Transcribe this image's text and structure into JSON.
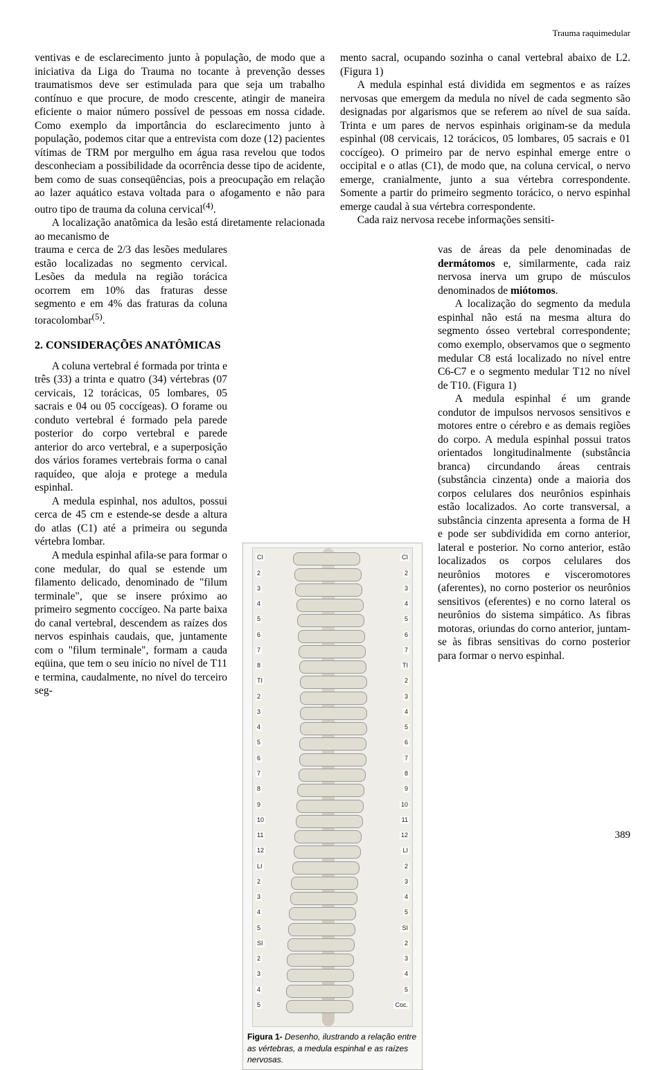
{
  "running_head": "Trauma raquimedular",
  "page_number": "389",
  "top_block": {
    "continuation": "ventivas e de esclarecimento junto à população, de modo que a iniciativa da Liga do Trauma no tocante à prevenção desses traumatismos deve ser estimulada para que seja um trabalho contínuo e que procure, de modo crescente, atingir de maneira eficiente o maior número possível de pessoas em nossa cidade. Como exemplo da importância do esclarecimento junto à população, podemos citar que a entrevista com doze (12) pacientes vítimas de TRM por mergulho em água rasa revelou que todos desconheciam a possibilidade da ocorrência desse tipo de acidente, bem como de suas conseqüências, pois a preocupação em relação ao lazer aquático estava voltada para o afogamento e não para outro tipo de trauma da coluna cervical",
    "ref1": "(4)",
    "continuation_end": ".",
    "p2": "A localização anatômica da lesão está diretamente relacionada ao mecanismo de",
    "right_top": "mento sacral, ocupando sozinha o canal vertebral abaixo de L2. (Figura 1)",
    "right_p2": "A medula espinhal está dividida em segmentos e as raízes nervosas que emergem da medula no nível de cada segmento são designadas por algarismos que se referem ao nível de sua saída. Trinta e um pares de nervos espinhais originam-se da medula espinhal (08 cervicais, 12 torácicos, 05 lombares, 05 sacrais e 01 coccígeo). O primeiro par de nervo espinhal emerge entre o occipital e o atlas (C1), de modo que, na coluna cervical, o nervo emerge, cranialmente, junto a sua vértebra correspondente. Somente a partir do primeiro segmento torácico, o nervo espinhal emerge caudal à sua vértebra correspondente.",
    "right_p3": "Cada raiz nervosa recebe informações sensiti-"
  },
  "left_narrow": {
    "p1": "trauma e cerca de 2/3 das lesões medulares estão localizadas no segmento cervical. Lesões da medula na região torácica ocorrem em 10% das fraturas desse segmento e em 4% das fraturas da coluna toracolombar",
    "ref": "(5)",
    "p1_end": ".",
    "heading": "2. CONSIDERAÇÕES ANATÔMICAS",
    "p2": "A coluna vertebral é formada por trinta e três (33) a trinta e quatro (34) vértebras (07 cervicais, 12 torácicas, 05 lombares, 05 sacrais e 04 ou 05 coccígeas). O forame ou conduto vertebral é formado pela parede posterior do corpo vertebral e parede anterior do arco vertebral, e a superposição dos vários forames vertebrais forma o canal raquídeo, que aloja e protege a medula espinhal.",
    "p3": "A medula espinhal, nos adultos, possui cerca de 45 cm e estende-se desde a altura do atlas (C1) até a primeira ou segunda vértebra lombar.",
    "p4": "A medula espinhal afila-se para formar o cone medular, do qual se estende um filamento delicado, denominado de \"filum terminale\", que se insere próximo ao primeiro segmento coccígeo. Na parte baixa do canal vertebral, descendem as raízes dos nervos espinhais caudais, que, juntamente com o \"filum terminale\", formam a cauda eqüina, que tem o seu início no nível de T11 e termina, caudalmente, no nível do terceiro seg-"
  },
  "right_narrow": {
    "p1a": "vas de áreas da pele denominadas de ",
    "p1b": "dermátomos",
    "p1c": " e, similarmente, cada raiz nervosa inerva um grupo de músculos denominados de ",
    "p1d": "miótomos",
    "p1e": ".",
    "p2": "A localização do segmento da medula espinhal não está na mesma altura do segmento ósseo vertebral correspondente; como exemplo, observamos que o segmento medular C8 está localizado no nível entre C6-C7 e o segmento medular T12 no nível de T10. (Figura 1)",
    "p3": "A medula espinhal é um grande condutor de impulsos nervosos sensitivos e motores entre o cérebro e as demais regiões do corpo. A medula espinhal possui tratos orientados longitudinalmente (substância branca) circundando áreas centrais (substância cinzenta) onde a maioria dos corpos celulares dos neurônios espinhais estão localizados. Ao corte transversal, a substância cinzenta apresenta a forma de H e pode ser subdividida em corno anterior, lateral e posterior. No corno anterior, estão localizados os corpos celulares dos neurônios motores e visceromotores (aferentes), no corno posterior os neurônios sensitivos (eferentes) e no corno lateral os neurônios do sistema simpático. As fibras motoras, oriundas do corno anterior, juntam-se às fibras sensitivas do corno posterior para formar o nervo espinhal."
  },
  "figure": {
    "caption_bold": "Figura 1-",
    "caption_rest": " Desenho, ilustrando a relação entre as vértebras, a medula espinhal e as raízes nervosas.",
    "labels_right": [
      "CI",
      "2",
      "3",
      "4",
      "5",
      "6",
      "7",
      "TI",
      "2",
      "3",
      "4",
      "5",
      "6",
      "7",
      "8",
      "9",
      "10",
      "11",
      "12",
      "LI",
      "2",
      "3",
      "4",
      "5",
      "SI",
      "2",
      "3",
      "4",
      "5",
      "Coc."
    ],
    "labels_left": [
      "CI",
      "2",
      "3",
      "4",
      "5",
      "6",
      "7",
      "8",
      "TI",
      "2",
      "3",
      "4",
      "5",
      "6",
      "7",
      "8",
      "9",
      "10",
      "11",
      "12",
      "LI",
      "2",
      "3",
      "4",
      "5",
      "SI",
      "2",
      "3",
      "4",
      "5"
    ]
  }
}
